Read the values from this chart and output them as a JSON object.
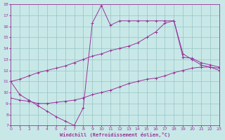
{
  "xlabel": "Windchill (Refroidissement éolien,°C)",
  "bg_color": "#c8e8e8",
  "grid_color": "#a0c8c8",
  "line_color": "#993399",
  "xlim": [
    0,
    23
  ],
  "ylim": [
    7,
    18
  ],
  "xticks": [
    0,
    1,
    2,
    3,
    4,
    5,
    6,
    7,
    8,
    9,
    10,
    11,
    12,
    13,
    14,
    15,
    16,
    17,
    18,
    19,
    20,
    21,
    22,
    23
  ],
  "yticks": [
    7,
    8,
    9,
    10,
    11,
    12,
    13,
    14,
    15,
    16,
    17,
    18
  ],
  "s1x": [
    0,
    1,
    2,
    3,
    4,
    5,
    6,
    7,
    8,
    9,
    10,
    11,
    12,
    13,
    14,
    15,
    16,
    17,
    18,
    19,
    20,
    21,
    22,
    23
  ],
  "s1y": [
    11.0,
    9.8,
    9.3,
    8.8,
    8.3,
    7.8,
    7.4,
    7.0,
    8.6,
    16.3,
    17.9,
    16.1,
    16.5,
    16.5,
    16.5,
    16.5,
    16.5,
    16.5,
    16.5,
    13.2,
    13.1,
    12.7,
    12.5,
    12.3
  ],
  "s2x": [
    0,
    1,
    2,
    3,
    4,
    5,
    6,
    7,
    8,
    9,
    10,
    11,
    12,
    13,
    14,
    15,
    16,
    17,
    18,
    19,
    20,
    21,
    22,
    23
  ],
  "s2y": [
    11.0,
    11.2,
    11.5,
    11.8,
    12.0,
    12.2,
    12.4,
    12.7,
    13.0,
    13.3,
    13.5,
    13.8,
    14.0,
    14.2,
    14.5,
    15.0,
    15.5,
    16.3,
    16.5,
    13.5,
    13.0,
    12.5,
    12.3,
    12.0
  ],
  "s3x": [
    0,
    1,
    2,
    3,
    4,
    5,
    6,
    7,
    8,
    9,
    10,
    11,
    12,
    13,
    14,
    15,
    16,
    17,
    18,
    19,
    20,
    21,
    22,
    23
  ],
  "s3y": [
    9.5,
    9.3,
    9.2,
    9.0,
    9.0,
    9.1,
    9.2,
    9.3,
    9.5,
    9.8,
    10.0,
    10.2,
    10.5,
    10.8,
    11.0,
    11.2,
    11.3,
    11.5,
    11.8,
    12.0,
    12.2,
    12.3,
    12.3,
    12.2
  ]
}
